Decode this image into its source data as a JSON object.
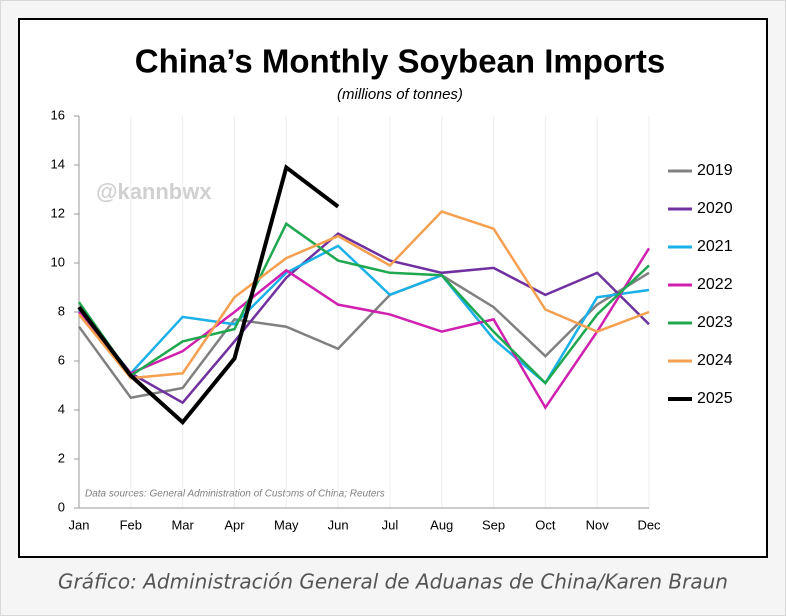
{
  "chart_data": {
    "type": "line",
    "title": "China’s Monthly Soybean Imports",
    "subtitle": "(millions of tonnes)",
    "watermark": "@kannbwx",
    "source": "Data sources: General Administration of Customs of China; Reuters",
    "categories": [
      "Jan",
      "Feb",
      "Mar",
      "Apr",
      "May",
      "Jun",
      "Jul",
      "Aug",
      "Sep",
      "Oct",
      "Nov",
      "Dec"
    ],
    "ylim": [
      0,
      16
    ],
    "yticks": [
      0,
      2,
      4,
      6,
      8,
      10,
      12,
      14,
      16
    ],
    "legend": "right",
    "series": [
      {
        "name": "2019",
        "color": "#808080",
        "values": [
          7.4,
          4.5,
          4.9,
          7.7,
          7.4,
          6.5,
          8.7,
          9.5,
          8.2,
          6.2,
          8.3,
          9.6
        ]
      },
      {
        "name": "2020",
        "color": "#7030a0",
        "values": [
          8.1,
          5.5,
          4.3,
          6.8,
          9.4,
          11.2,
          10.1,
          9.6,
          9.8,
          8.7,
          9.6,
          7.5
        ]
      },
      {
        "name": "2021",
        "color": "#1ab0e8",
        "values": [
          8.1,
          5.5,
          7.8,
          7.5,
          9.6,
          10.7,
          8.7,
          9.5,
          6.9,
          5.1,
          8.6,
          8.9
        ]
      },
      {
        "name": "2022",
        "color": "#d020b0",
        "values": [
          8.0,
          5.5,
          6.4,
          8.0,
          9.7,
          8.3,
          7.9,
          7.2,
          7.7,
          4.1,
          7.2,
          10.6
        ]
      },
      {
        "name": "2023",
        "color": "#20a850",
        "values": [
          8.4,
          5.4,
          6.8,
          7.3,
          11.6,
          10.1,
          9.6,
          9.5,
          7.2,
          5.1,
          7.9,
          9.9
        ]
      },
      {
        "name": "2024",
        "color": "#f5a050",
        "values": [
          7.9,
          5.3,
          5.5,
          8.6,
          10.2,
          11.1,
          9.9,
          12.1,
          11.4,
          8.1,
          7.2,
          8.0
        ]
      },
      {
        "name": "2025",
        "color": "#000000",
        "values": [
          8.2,
          5.4,
          3.5,
          6.1,
          13.9,
          12.3,
          null,
          null,
          null,
          null,
          null,
          null
        ]
      }
    ]
  },
  "caption": "Gráfico: Administración General de Aduanas de China/Karen Braun"
}
